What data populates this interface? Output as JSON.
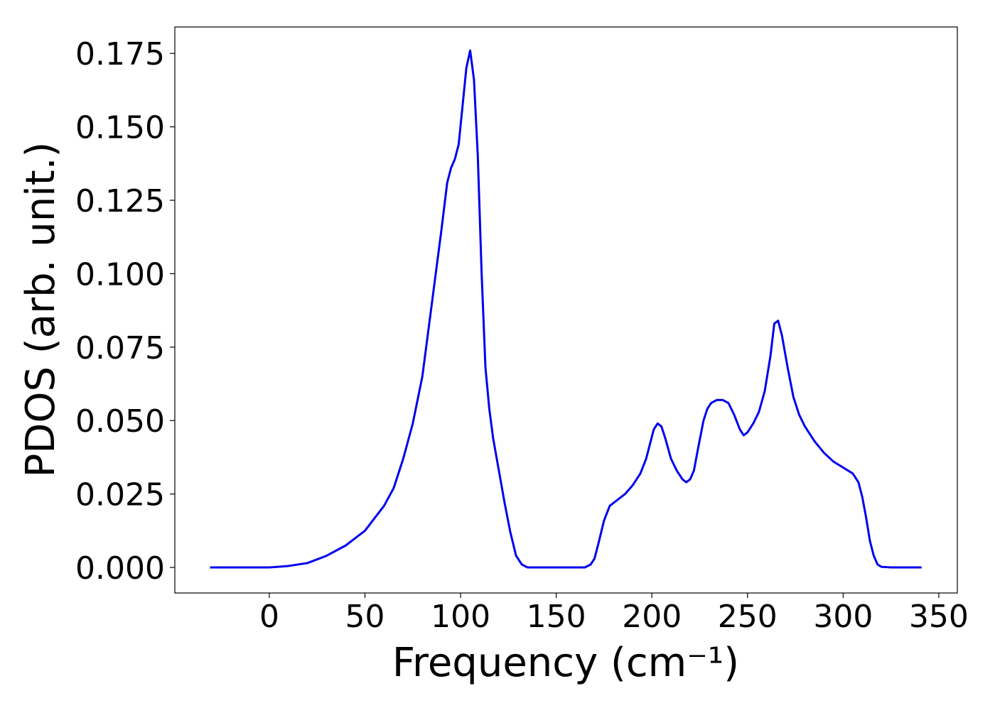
{
  "chart_data": {
    "type": "line",
    "xlabel": "Frequency (cm⁻¹)",
    "ylabel": "PDOS (arb. unit.)",
    "xlim": [
      -49.4,
      359.7
    ],
    "ylim": [
      -0.0087,
      0.184
    ],
    "xticks": [
      0,
      50,
      100,
      150,
      200,
      250,
      300,
      350
    ],
    "yticks": [
      {
        "value": 0,
        "label": "0.000"
      },
      {
        "value": 0.025,
        "label": "0.025"
      },
      {
        "value": 0.05,
        "label": "0.050"
      },
      {
        "value": 0.075,
        "label": "0.075"
      },
      {
        "value": 0.1,
        "label": "0.100"
      },
      {
        "value": 0.125,
        "label": "0.125"
      },
      {
        "value": 0.15,
        "label": "0.150"
      },
      {
        "value": 0.175,
        "label": "0.175"
      }
    ],
    "x": [
      -31,
      0,
      10,
      20,
      30,
      40,
      50,
      60,
      65,
      70,
      75,
      80,
      85,
      90,
      93,
      95,
      97,
      99,
      101,
      103,
      105,
      107,
      109,
      111,
      113,
      115,
      117,
      120,
      123,
      126,
      129,
      132,
      135,
      150,
      165,
      168,
      170,
      172,
      175,
      178,
      182,
      186,
      190,
      194,
      197,
      199,
      201,
      203,
      205,
      207,
      210,
      213,
      216,
      218,
      220,
      222,
      224,
      227,
      229,
      231,
      234,
      237,
      240,
      243,
      246,
      248,
      250,
      253,
      256,
      259,
      262,
      264,
      266,
      268,
      271,
      274,
      277,
      280,
      285,
      290,
      295,
      300,
      305,
      308,
      310,
      312,
      314,
      316,
      318,
      320,
      325,
      341
    ],
    "series": [
      {
        "name": "PDOS",
        "color": "#0000ee",
        "values": [
          0,
          0,
          0.0005,
          0.0015,
          0.004,
          0.0075,
          0.0125,
          0.021,
          0.027,
          0.037,
          0.049,
          0.065,
          0.09,
          0.115,
          0.131,
          0.136,
          0.139,
          0.144,
          0.157,
          0.17,
          0.176,
          0.166,
          0.14,
          0.1,
          0.068,
          0.054,
          0.044,
          0.033,
          0.022,
          0.012,
          0.004,
          0.001,
          0,
          0,
          0,
          0.001,
          0.003,
          0.008,
          0.016,
          0.021,
          0.023,
          0.025,
          0.028,
          0.032,
          0.037,
          0.042,
          0.047,
          0.049,
          0.048,
          0.044,
          0.037,
          0.033,
          0.03,
          0.029,
          0.03,
          0.033,
          0.04,
          0.05,
          0.054,
          0.056,
          0.057,
          0.057,
          0.056,
          0.052,
          0.047,
          0.045,
          0.046,
          0.049,
          0.053,
          0.06,
          0.072,
          0.083,
          0.084,
          0.079,
          0.068,
          0.058,
          0.052,
          0.048,
          0.043,
          0.039,
          0.036,
          0.034,
          0.032,
          0.029,
          0.024,
          0.017,
          0.009,
          0.004,
          0.001,
          0.0002,
          0,
          0
        ]
      }
    ]
  }
}
